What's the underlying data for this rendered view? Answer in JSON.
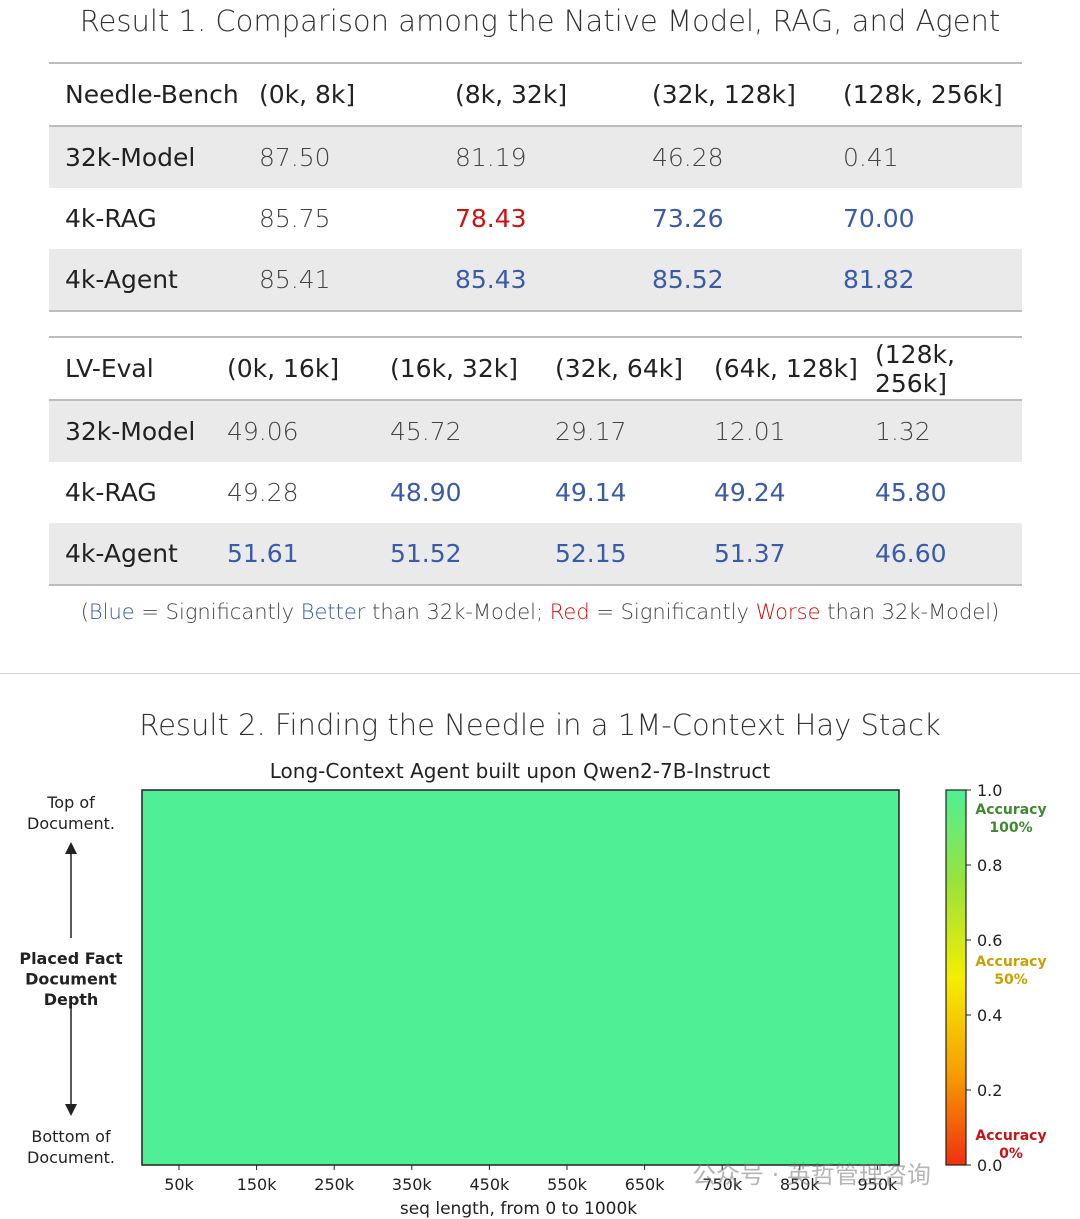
{
  "result1_title": "Result 1. Comparison among the Native Model, RAG, and Agent",
  "table1": {
    "header": [
      "Needle-Bench",
      "(0k, 8k]",
      "(8k, 32k]",
      "(32k, 128k]",
      "(128k, 256k]"
    ],
    "rows": [
      {
        "name": "32k-Model",
        "values": [
          "87.50",
          "81.19",
          "46.28",
          "0.41"
        ],
        "colors": [
          "n",
          "n",
          "n",
          "n"
        ]
      },
      {
        "name": "4k-RAG",
        "values": [
          "85.75",
          "78.43",
          "73.26",
          "70.00"
        ],
        "colors": [
          "n",
          "r",
          "b",
          "b"
        ]
      },
      {
        "name": "4k-Agent",
        "values": [
          "85.41",
          "85.43",
          "85.52",
          "81.82"
        ],
        "colors": [
          "n",
          "b",
          "b",
          "b"
        ]
      }
    ]
  },
  "table2": {
    "header": [
      "LV-Eval",
      "(0k, 16k]",
      "(16k, 32k]",
      "(32k, 64k]",
      "(64k, 128k]",
      "(128k, 256k]"
    ],
    "rows": [
      {
        "name": "32k-Model",
        "values": [
          "49.06",
          "45.72",
          "29.17",
          "12.01",
          "1.32"
        ],
        "colors": [
          "n",
          "n",
          "n",
          "n",
          "n"
        ]
      },
      {
        "name": "4k-RAG",
        "values": [
          "49.28",
          "48.90",
          "49.14",
          "49.24",
          "45.80"
        ],
        "colors": [
          "n",
          "b",
          "b",
          "b",
          "b"
        ]
      },
      {
        "name": "4k-Agent",
        "values": [
          "51.61",
          "51.52",
          "52.15",
          "51.37",
          "46.60"
        ],
        "colors": [
          "b",
          "b",
          "b",
          "b",
          "b"
        ]
      }
    ]
  },
  "legend": {
    "open": "(",
    "blue": "Blue",
    "mid1": " = Significantly ",
    "better": "Better",
    "mid2": " than 32k-Model; ",
    "red": "Red",
    "mid3": " = Significantly ",
    "worse": "Worse",
    "end": " than 32k-Model)"
  },
  "colors": {
    "blue": "#3a5ba8",
    "red": "#cc1111",
    "heat_fill": "#4ff095"
  },
  "result2_title": "Result 2. Finding the Needle in a 1M-Context Hay Stack",
  "chart_data": {
    "type": "heatmap",
    "title": "Long-Context Agent built upon Qwen2-7B-Instruct",
    "xlabel": "seq length, from 0 to 1000k",
    "x_ticks": [
      "50k",
      "150k",
      "250k",
      "350k",
      "450k",
      "550k",
      "650k",
      "750k",
      "850k",
      "950k"
    ],
    "x_tick_values": [
      50,
      150,
      250,
      350,
      450,
      550,
      650,
      750,
      850,
      950
    ],
    "xlim": [
      0,
      1000
    ],
    "ylabel_top": [
      "Top of",
      "Document."
    ],
    "ylabel_mid": [
      "Placed Fact",
      "Document",
      "Depth"
    ],
    "ylabel_bottom": [
      "Bottom of",
      "Document."
    ],
    "values": "all cells = 1.0",
    "cell_value": 1.0,
    "colorbar": {
      "ticks": [
        "1.0",
        "0.8",
        "0.6",
        "0.4",
        "0.2",
        "0.0"
      ],
      "tick_values": [
        1.0,
        0.8,
        0.6,
        0.4,
        0.2,
        0.0
      ],
      "range": [
        0,
        1
      ],
      "labels": [
        {
          "text": [
            "Accuracy",
            "100%"
          ],
          "value": 1.0,
          "color": "#3f8a2e"
        },
        {
          "text": [
            "Accuracy",
            "50%"
          ],
          "value": 0.5,
          "color": "#c9a100"
        },
        {
          "text": [
            "Accuracy",
            "0%"
          ],
          "value": 0.0,
          "color": "#c81414"
        }
      ]
    }
  },
  "watermark": "公众号 · 英哲管理咨询"
}
